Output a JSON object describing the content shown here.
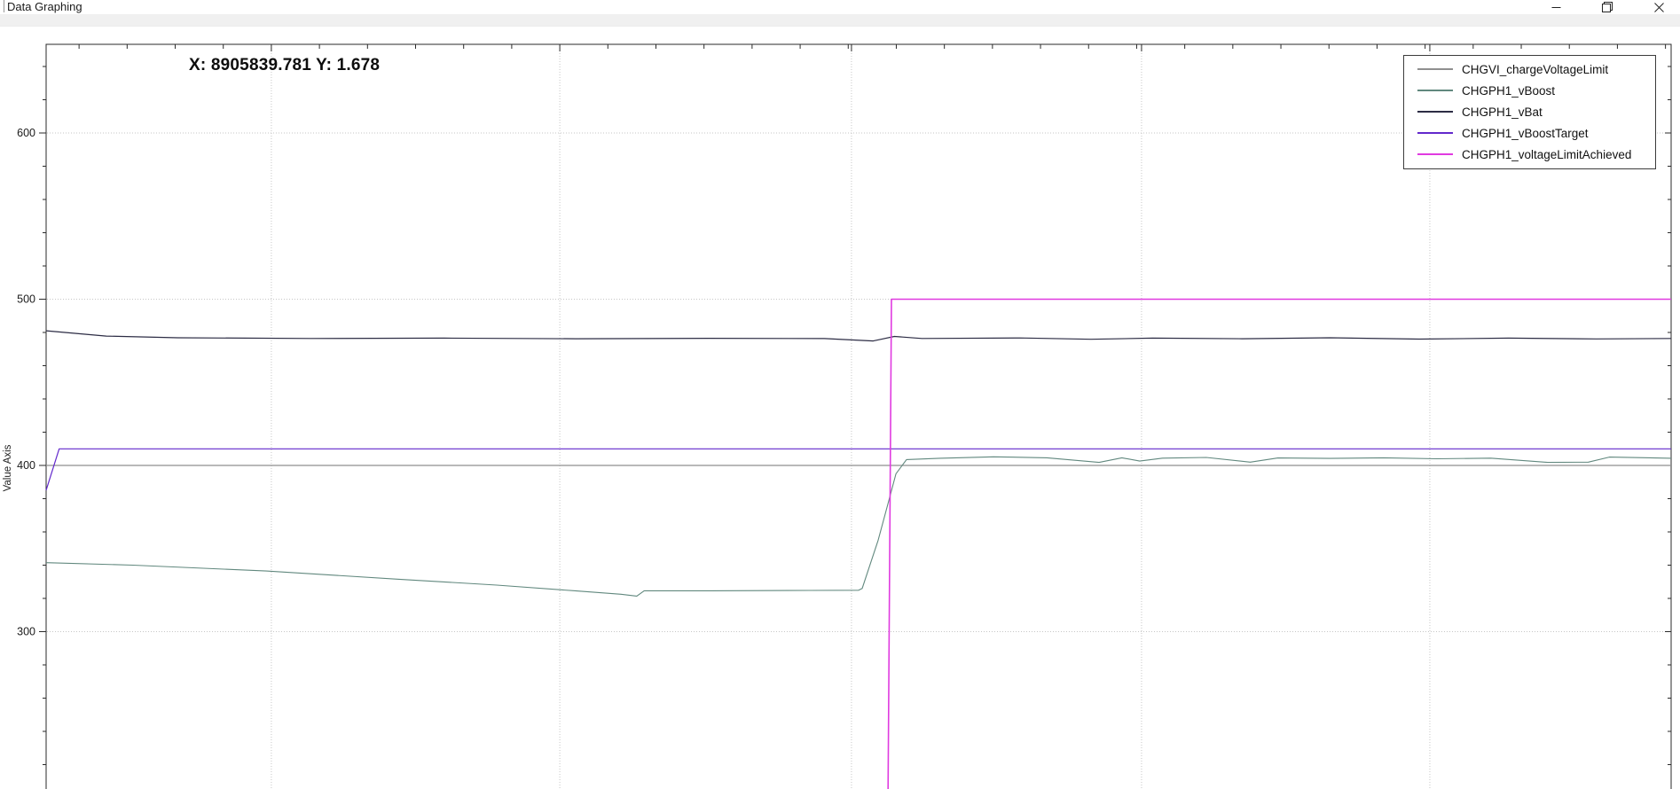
{
  "window": {
    "title": "Data Graphing",
    "controls": {
      "minimize": "minimize",
      "restore": "restore",
      "close": "close"
    }
  },
  "chart": {
    "coordinate_readout": "X: 8905839.781 Y: 1.678"
  },
  "legend": {
    "items": [
      {
        "label": "CHGVI_chargeVoltageLimit",
        "color": "#8f8f8f"
      },
      {
        "label": "CHGPH1_vBoost",
        "color": "#61887e"
      },
      {
        "label": "CHGPH1_vBat",
        "color": "#2c2c44"
      },
      {
        "label": "CHGPH1_vBoostTarget",
        "color": "#6228cc"
      },
      {
        "label": "CHGPH1_voltageLimitAchieved",
        "color": "#e03ae0"
      }
    ]
  },
  "chart_data": {
    "type": "line",
    "title": "",
    "ylabel": "Value Axis",
    "xlabel": "",
    "y_ticks": [
      600,
      500,
      400,
      300
    ],
    "y_minor_step": 20,
    "y_view_range": [
      205,
      653
    ],
    "x_tick_labels_visible": false,
    "x_gridlines_t": [
      0.1386,
      0.3161,
      0.4956,
      0.6741,
      0.8515
    ],
    "x_minor_per_major": 6,
    "grid": "dotted",
    "legend_position": "top-right",
    "series": [
      {
        "name": "CHGVI_chargeVoltageLimit",
        "color": "#8f8f8f",
        "width": 1.2,
        "points": [
          [
            0,
            400
          ],
          [
            1,
            400
          ]
        ]
      },
      {
        "name": "CHGPH1_vBoost",
        "color": "#61887e",
        "width": 1.1,
        "points": [
          [
            0,
            341.5
          ],
          [
            0.0535,
            340
          ],
          [
            0.1354,
            336.5
          ],
          [
            0.2172,
            331.5
          ],
          [
            0.2773,
            328
          ],
          [
            0.3264,
            324.5
          ],
          [
            0.3537,
            322.5
          ],
          [
            0.3635,
            321.4
          ],
          [
            0.368,
            324.6
          ],
          [
            0.41,
            324.6
          ],
          [
            0.47,
            324.8
          ],
          [
            0.5,
            324.9
          ],
          [
            0.5022,
            326
          ],
          [
            0.512,
            355
          ],
          [
            0.5175,
            375
          ],
          [
            0.523,
            395
          ],
          [
            0.5295,
            403.5
          ],
          [
            0.55,
            404.3
          ],
          [
            0.583,
            405.2
          ],
          [
            0.616,
            404.6
          ],
          [
            0.648,
            401.8
          ],
          [
            0.662,
            404.6
          ],
          [
            0.673,
            402.6
          ],
          [
            0.687,
            404.4
          ],
          [
            0.714,
            404.8
          ],
          [
            0.741,
            402.0
          ],
          [
            0.758,
            404.5
          ],
          [
            0.79,
            404.2
          ],
          [
            0.823,
            404.6
          ],
          [
            0.856,
            404.0
          ],
          [
            0.889,
            404.4
          ],
          [
            0.924,
            401.8
          ],
          [
            0.949,
            402.0
          ],
          [
            0.962,
            405.0
          ],
          [
            0.987,
            404.6
          ],
          [
            1,
            404.3
          ]
        ]
      },
      {
        "name": "CHGPH1_vBat",
        "color": "#2c2c44",
        "width": 1.2,
        "points": [
          [
            0,
            481
          ],
          [
            0.037,
            477.8
          ],
          [
            0.081,
            476.8
          ],
          [
            0.163,
            476.4
          ],
          [
            0.245,
            476.6
          ],
          [
            0.326,
            476.2
          ],
          [
            0.408,
            476.5
          ],
          [
            0.479,
            476.3
          ],
          [
            0.509,
            474.9
          ],
          [
            0.522,
            477.6
          ],
          [
            0.539,
            476.4
          ],
          [
            0.599,
            476.7
          ],
          [
            0.643,
            475.9
          ],
          [
            0.681,
            476.6
          ],
          [
            0.736,
            476.2
          ],
          [
            0.79,
            476.8
          ],
          [
            0.845,
            476.0
          ],
          [
            0.9,
            476.6
          ],
          [
            0.954,
            476.1
          ],
          [
            1,
            476.4
          ]
        ]
      },
      {
        "name": "CHGPH1_vBoostTarget",
        "color": "#6228cc",
        "width": 1.2,
        "points": [
          [
            0,
            385
          ],
          [
            0.008,
            410
          ],
          [
            1,
            410
          ]
        ]
      },
      {
        "name": "CHGPH1_voltageLimitAchieved",
        "color": "#e03ae0",
        "width": 1.6,
        "points": [
          [
            0.518,
            190
          ],
          [
            0.5202,
            500
          ],
          [
            1,
            500
          ]
        ]
      }
    ]
  }
}
